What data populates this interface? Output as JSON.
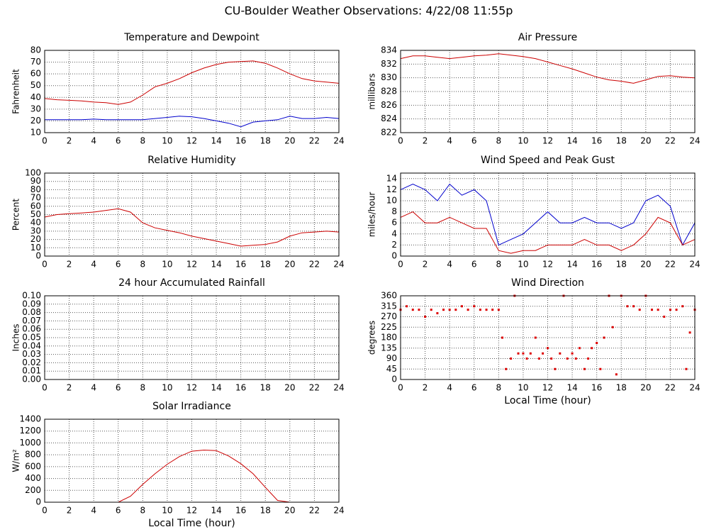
{
  "title": "CU-Boulder Weather Observations: 4/22/08 11:55p",
  "chart_data": [
    {
      "type": "line",
      "title": "Temperature and Dewpoint",
      "ylabel": "Fahrenheit",
      "x": [
        0,
        1,
        2,
        3,
        4,
        5,
        6,
        7,
        8,
        9,
        10,
        11,
        12,
        13,
        14,
        15,
        16,
        17,
        18,
        19,
        20,
        21,
        22,
        23,
        24
      ],
      "series": [
        {
          "name": "Temperature",
          "color": "#cc0000",
          "values": [
            39,
            38,
            37.5,
            37,
            36,
            35.5,
            34,
            36,
            42,
            49,
            52,
            56,
            61,
            65,
            68,
            70,
            70.5,
            71,
            69,
            65,
            60,
            56,
            54,
            53,
            52
          ]
        },
        {
          "name": "Dewpoint",
          "color": "#0000cc",
          "values": [
            21,
            21,
            21,
            21,
            21.5,
            21,
            21,
            21,
            21,
            22,
            23,
            24,
            23.5,
            22,
            20,
            18,
            15,
            19,
            20,
            21,
            24,
            22,
            22,
            23,
            22
          ]
        }
      ],
      "xlim": [
        0,
        24
      ],
      "ylim": [
        10,
        80
      ],
      "xticks": [
        0,
        2,
        4,
        6,
        8,
        10,
        12,
        14,
        16,
        18,
        20,
        22,
        24
      ],
      "yticks": [
        10,
        20,
        30,
        40,
        50,
        60,
        70,
        80
      ],
      "grid": true
    },
    {
      "type": "line",
      "title": "Relative Humidity",
      "ylabel": "Percent",
      "x": [
        0,
        1,
        2,
        3,
        4,
        5,
        6,
        7,
        8,
        9,
        10,
        11,
        12,
        13,
        14,
        15,
        16,
        17,
        18,
        19,
        20,
        21,
        22,
        23,
        24
      ],
      "series": [
        {
          "name": "Relative Humidity",
          "color": "#cc0000",
          "values": [
            47,
            50,
            51,
            52,
            53,
            55,
            57,
            53,
            40,
            34,
            31,
            28,
            24,
            21,
            18,
            15,
            12,
            13,
            14,
            17,
            24,
            28,
            29,
            30,
            29
          ]
        }
      ],
      "xlim": [
        0,
        24
      ],
      "ylim": [
        0,
        100
      ],
      "xticks": [
        0,
        2,
        4,
        6,
        8,
        10,
        12,
        14,
        16,
        18,
        20,
        22,
        24
      ],
      "yticks": [
        0,
        10,
        20,
        30,
        40,
        50,
        60,
        70,
        80,
        90,
        100
      ],
      "grid": true
    },
    {
      "type": "line",
      "title": "24 hour Accumulated Rainfall",
      "ylabel": "Inches",
      "x": [
        0,
        1,
        2,
        3,
        4,
        5,
        6,
        7,
        8,
        9,
        10,
        11,
        12,
        13,
        14,
        15,
        16,
        17,
        18,
        19,
        20,
        21,
        22,
        23,
        24
      ],
      "series": [
        {
          "name": "Rainfall",
          "color": "#cc0000",
          "values": [
            0,
            0,
            0,
            0,
            0,
            0,
            0,
            0,
            0,
            0,
            0,
            0,
            0,
            0,
            0,
            0,
            0,
            0,
            0,
            0,
            0,
            0,
            0,
            0,
            0
          ]
        }
      ],
      "xlim": [
        0,
        24
      ],
      "ylim": [
        0,
        0.1
      ],
      "xticks": [
        0,
        2,
        4,
        6,
        8,
        10,
        12,
        14,
        16,
        18,
        20,
        22,
        24
      ],
      "yticks": [
        {
          "value": 0,
          "label": "0.00"
        },
        {
          "value": 0.01,
          "label": "0.01"
        },
        {
          "value": 0.02,
          "label": "0.02"
        },
        {
          "value": 0.03,
          "label": "0.03"
        },
        {
          "value": 0.04,
          "label": "0.04"
        },
        {
          "value": 0.05,
          "label": "0.05"
        },
        {
          "value": 0.06,
          "label": "0.06"
        },
        {
          "value": 0.07,
          "label": "0.07"
        },
        {
          "value": 0.08,
          "label": "0.08"
        },
        {
          "value": 0.09,
          "label": "0.09"
        },
        {
          "value": 0.1,
          "label": "0.10"
        }
      ],
      "grid": true
    },
    {
      "type": "line",
      "title": "Solar Irradiance",
      "ylabel": "W/m²",
      "xlabel": "Local Time (hour)",
      "x": [
        0,
        1,
        2,
        3,
        4,
        5,
        6,
        7,
        8,
        9,
        10,
        11,
        12,
        13,
        14,
        15,
        16,
        17,
        18,
        19,
        20,
        21,
        22,
        23,
        24
      ],
      "series": [
        {
          "name": "Solar Irradiance",
          "color": "#cc0000",
          "values": [
            0,
            0,
            0,
            0,
            0,
            0,
            0,
            100,
            300,
            480,
            640,
            770,
            860,
            880,
            870,
            780,
            650,
            480,
            250,
            30,
            0,
            0,
            0,
            0,
            0
          ]
        }
      ],
      "xlim": [
        0,
        24
      ],
      "ylim": [
        0,
        1400
      ],
      "xticks": [
        0,
        2,
        4,
        6,
        8,
        10,
        12,
        14,
        16,
        18,
        20,
        22,
        24
      ],
      "yticks": [
        0,
        200,
        400,
        600,
        800,
        1000,
        1200,
        1400
      ],
      "grid": true
    },
    {
      "type": "line",
      "title": "Air Pressure",
      "ylabel": "millibars",
      "x": [
        0,
        1,
        2,
        3,
        4,
        5,
        6,
        7,
        8,
        9,
        10,
        11,
        12,
        13,
        14,
        15,
        16,
        17,
        18,
        19,
        20,
        21,
        22,
        23,
        24
      ],
      "series": [
        {
          "name": "Air Pressure",
          "color": "#cc0000",
          "values": [
            832.8,
            833.2,
            833.2,
            833,
            832.8,
            833,
            833.2,
            833.3,
            833.5,
            833.3,
            833.1,
            832.8,
            832.3,
            831.8,
            831.3,
            830.7,
            830.1,
            829.7,
            829.5,
            829.2,
            829.7,
            830.2,
            830.3,
            830.1,
            830
          ]
        }
      ],
      "xlim": [
        0,
        24
      ],
      "ylim": [
        822,
        834
      ],
      "xticks": [
        0,
        2,
        4,
        6,
        8,
        10,
        12,
        14,
        16,
        18,
        20,
        22,
        24
      ],
      "yticks": [
        822,
        824,
        826,
        828,
        830,
        832,
        834
      ],
      "grid": true
    },
    {
      "type": "line",
      "title": "Wind Speed and Peak Gust",
      "ylabel": "miles/hour",
      "x": [
        0,
        1,
        2,
        3,
        4,
        5,
        6,
        7,
        8,
        9,
        10,
        11,
        12,
        13,
        14,
        15,
        16,
        17,
        18,
        19,
        20,
        21,
        22,
        23,
        24
      ],
      "series": [
        {
          "name": "Peak Gust",
          "color": "#0000cc",
          "values": [
            12,
            13,
            12,
            10,
            13,
            11,
            12,
            10,
            2,
            3,
            4,
            6,
            8,
            6,
            6,
            7,
            6,
            6,
            5,
            6,
            10,
            11,
            9,
            2,
            6
          ]
        },
        {
          "name": "Wind Speed",
          "color": "#cc0000",
          "values": [
            7,
            8,
            6,
            6,
            7,
            6,
            5,
            5,
            1,
            0.5,
            1,
            1,
            2,
            2,
            2,
            3,
            2,
            2,
            1,
            2,
            4,
            7,
            6,
            2,
            3
          ]
        }
      ],
      "xlim": [
        0,
        24
      ],
      "ylim": [
        0,
        15
      ],
      "xticks": [
        0,
        2,
        4,
        6,
        8,
        10,
        12,
        14,
        16,
        18,
        20,
        22,
        24
      ],
      "yticks": [
        0,
        2,
        4,
        6,
        8,
        10,
        12,
        14
      ],
      "grid": true
    },
    {
      "type": "scatter",
      "title": "Wind Direction",
      "ylabel": "degrees",
      "xlabel": "Local Time (hour)",
      "x": [
        0,
        0.5,
        1,
        1.5,
        2,
        2.5,
        3,
        3.5,
        4,
        4.5,
        5,
        5.5,
        6,
        6.5,
        7,
        7.5,
        8,
        8.3,
        8.6,
        9,
        9.3,
        9.6,
        10,
        10.3,
        10.6,
        11,
        11.3,
        11.6,
        12,
        12.3,
        12.6,
        13,
        13.3,
        13.6,
        14,
        14.3,
        14.6,
        15,
        15.3,
        15.6,
        16,
        16.3,
        16.6,
        17,
        17.3,
        17.6,
        18,
        18.5,
        19,
        19.5,
        20,
        20.5,
        21,
        21.5,
        22,
        22.5,
        23,
        23.3,
        23.6,
        24
      ],
      "series": [
        {
          "name": "Wind Direction",
          "color": "#dd0000",
          "values": [
            300,
            315,
            300,
            300,
            270,
            300,
            285,
            300,
            300,
            300,
            315,
            300,
            315,
            300,
            300,
            300,
            300,
            180,
            45,
            90,
            360,
            112,
            112,
            90,
            112,
            180,
            90,
            112,
            135,
            90,
            45,
            112,
            360,
            90,
            112,
            90,
            135,
            45,
            90,
            135,
            157,
            45,
            180,
            360,
            225,
            22,
            360,
            315,
            315,
            300,
            360,
            300,
            300,
            270,
            300,
            300,
            315,
            45,
            202,
            300
          ]
        }
      ],
      "xlim": [
        0,
        24
      ],
      "ylim": [
        0,
        360
      ],
      "xticks": [
        0,
        2,
        4,
        6,
        8,
        10,
        12,
        14,
        16,
        18,
        20,
        22,
        24
      ],
      "yticks": [
        0,
        45,
        90,
        135,
        180,
        225,
        270,
        315,
        360
      ],
      "grid": true
    }
  ]
}
